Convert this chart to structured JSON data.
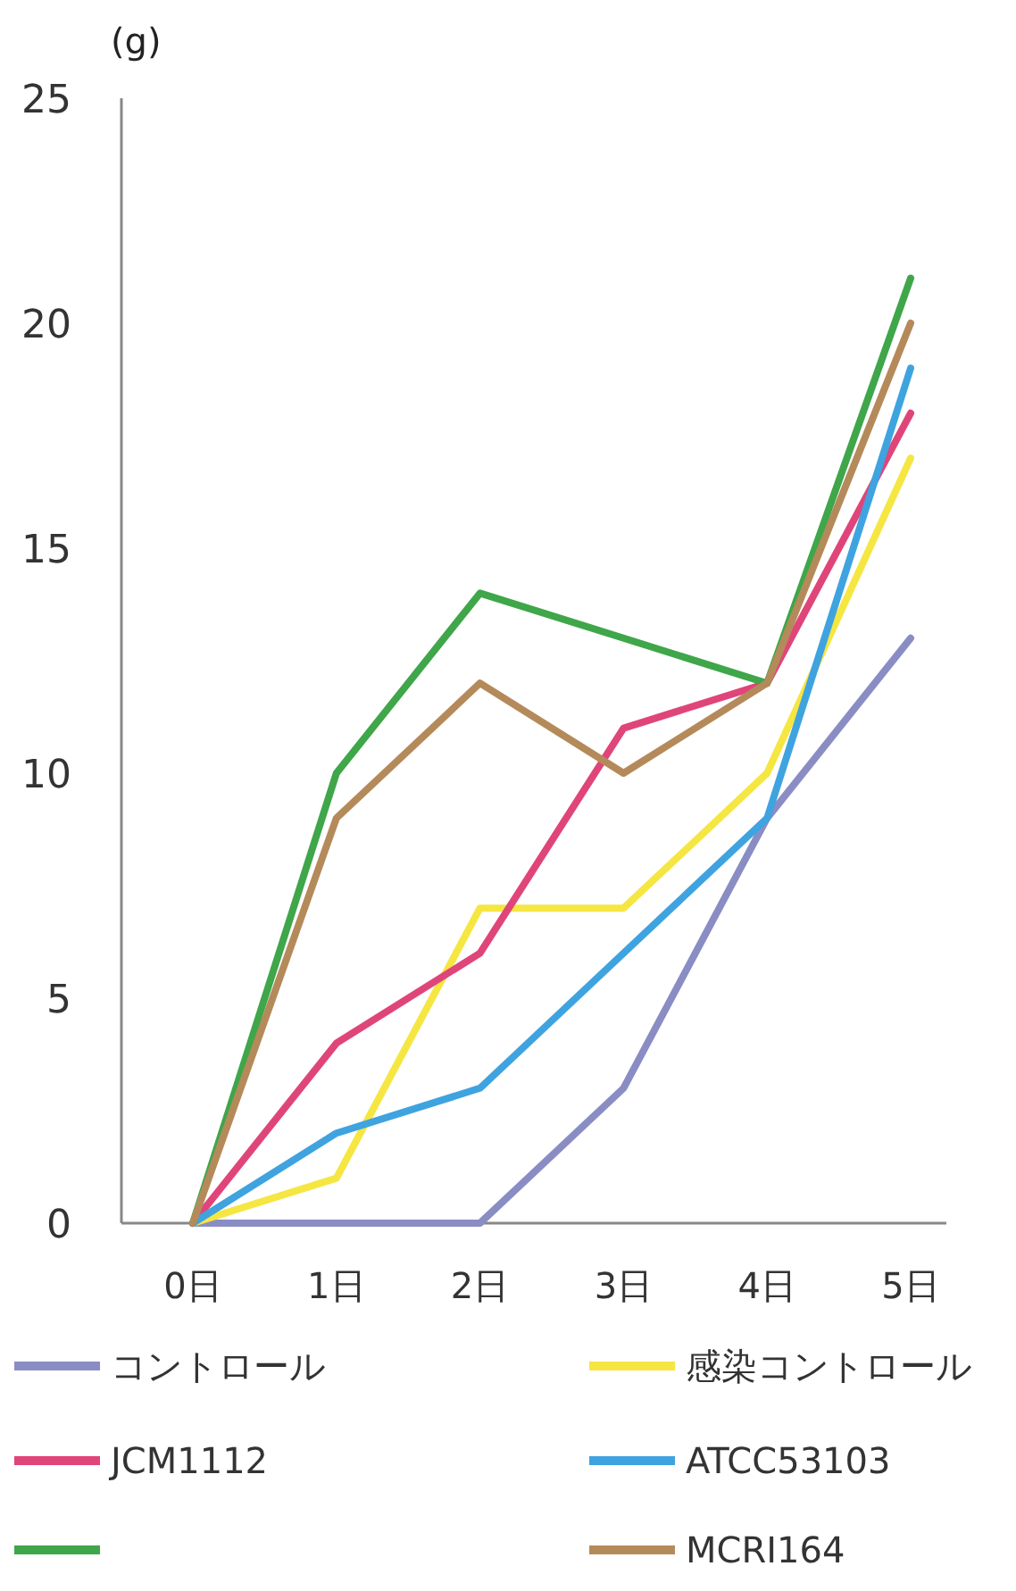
{
  "chart_data": {
    "type": "line",
    "ylabel": "(g)",
    "categories": [
      "0日",
      "1日",
      "2日",
      "3日",
      "4日",
      "5日"
    ],
    "ylim": [
      0,
      25
    ],
    "yticks": [
      0,
      5,
      10,
      15,
      20,
      25
    ],
    "grid": false,
    "legend": "bottom",
    "marker": "none",
    "line_style": "solid",
    "series": [
      {
        "name": "コントロール",
        "color": "#8a8dc4",
        "values": [
          0,
          0,
          0,
          3,
          9,
          13
        ]
      },
      {
        "name": "感染コントロール",
        "color": "#f5e642",
        "values": [
          0,
          1,
          7,
          7,
          10,
          17
        ]
      },
      {
        "name": "JCM1112",
        "color": "#e0457a",
        "values": [
          0,
          4,
          6,
          11,
          12,
          18
        ]
      },
      {
        "name": "ATCC53103",
        "color": "#3fa3e0",
        "values": [
          0,
          2,
          3,
          6,
          9,
          19
        ]
      },
      {
        "color": "#3fa64a",
        "values": [
          0,
          10,
          14,
          13,
          12,
          21
        ]
      },
      {
        "name": "MCRI164",
        "color": "#b58a5a",
        "values": [
          0,
          9,
          12,
          10,
          12,
          20
        ]
      }
    ]
  }
}
